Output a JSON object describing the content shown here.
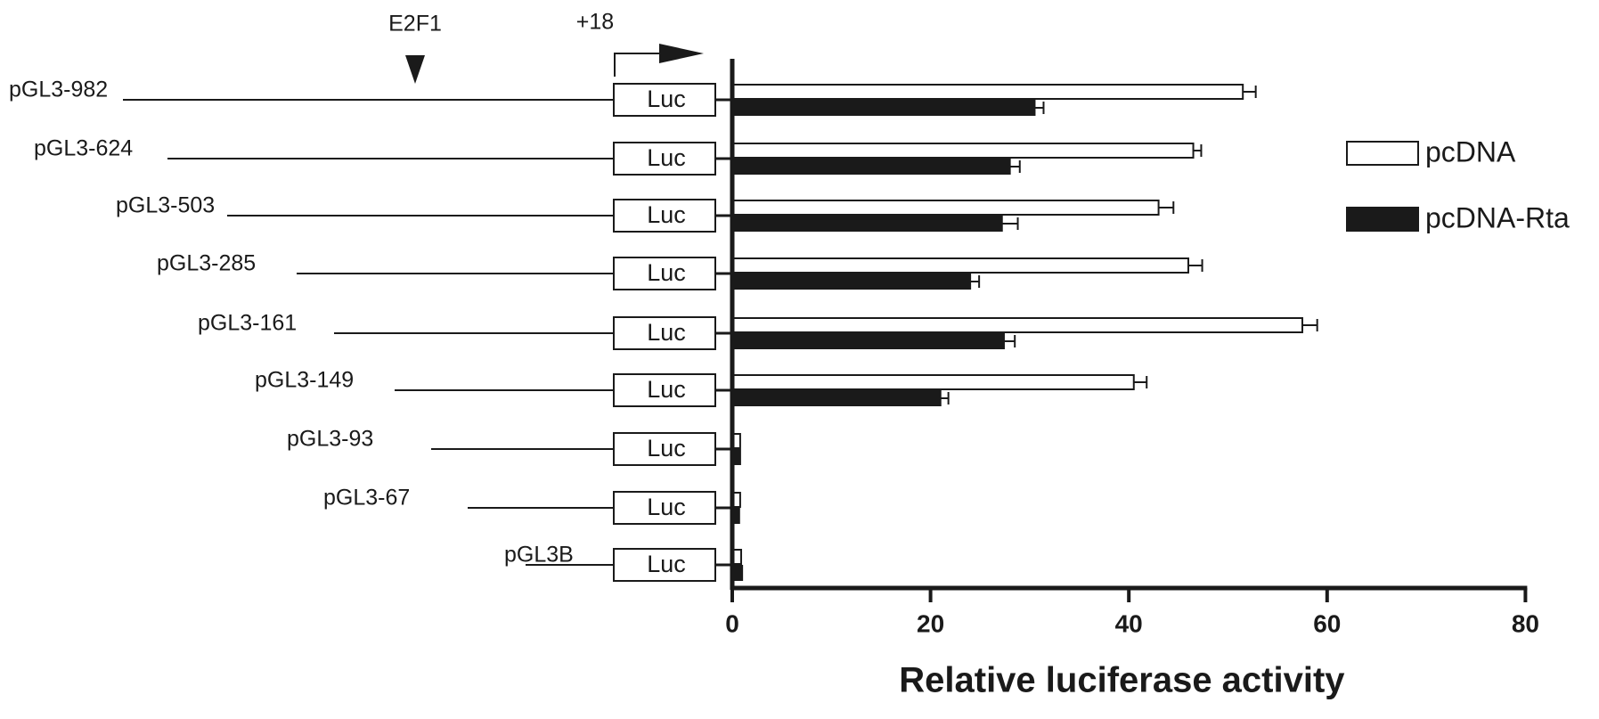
{
  "chart_data": {
    "type": "bar",
    "orientation": "horizontal",
    "categories": [
      "pGL3-982",
      "pGL3-624",
      "pGL3-503",
      "pGL3-285",
      "pGL3-161",
      "pGL3-149",
      "pGL3-93",
      "pGL3-67",
      "pGL3B"
    ],
    "series": [
      {
        "name": "pcDNA",
        "fill": "#ffffff",
        "values": [
          51.5,
          46.5,
          43.0,
          46.0,
          57.5,
          40.5,
          0.8,
          0.8,
          0.9
        ],
        "errors": [
          1.3,
          0.8,
          1.5,
          1.4,
          1.5,
          1.3,
          0.1,
          0.1,
          0.1
        ]
      },
      {
        "name": "pcDNA-Rta",
        "fill": "#1a1a1a",
        "values": [
          30.5,
          28.0,
          27.2,
          24.0,
          27.4,
          21.0,
          0.8,
          0.7,
          1.0
        ],
        "errors": [
          0.9,
          1.0,
          1.6,
          0.9,
          1.1,
          0.8,
          0.1,
          0.1,
          0.1
        ]
      }
    ],
    "xlabel": "Relative luciferase activity",
    "xlim": [
      0,
      80
    ],
    "xticks": [
      0,
      20,
      40,
      60,
      80
    ],
    "grid": false,
    "legend_position": "right",
    "promoter_diagram": {
      "luc_label": "Luc",
      "site_label": "E2F1",
      "start_label": "+18"
    }
  }
}
